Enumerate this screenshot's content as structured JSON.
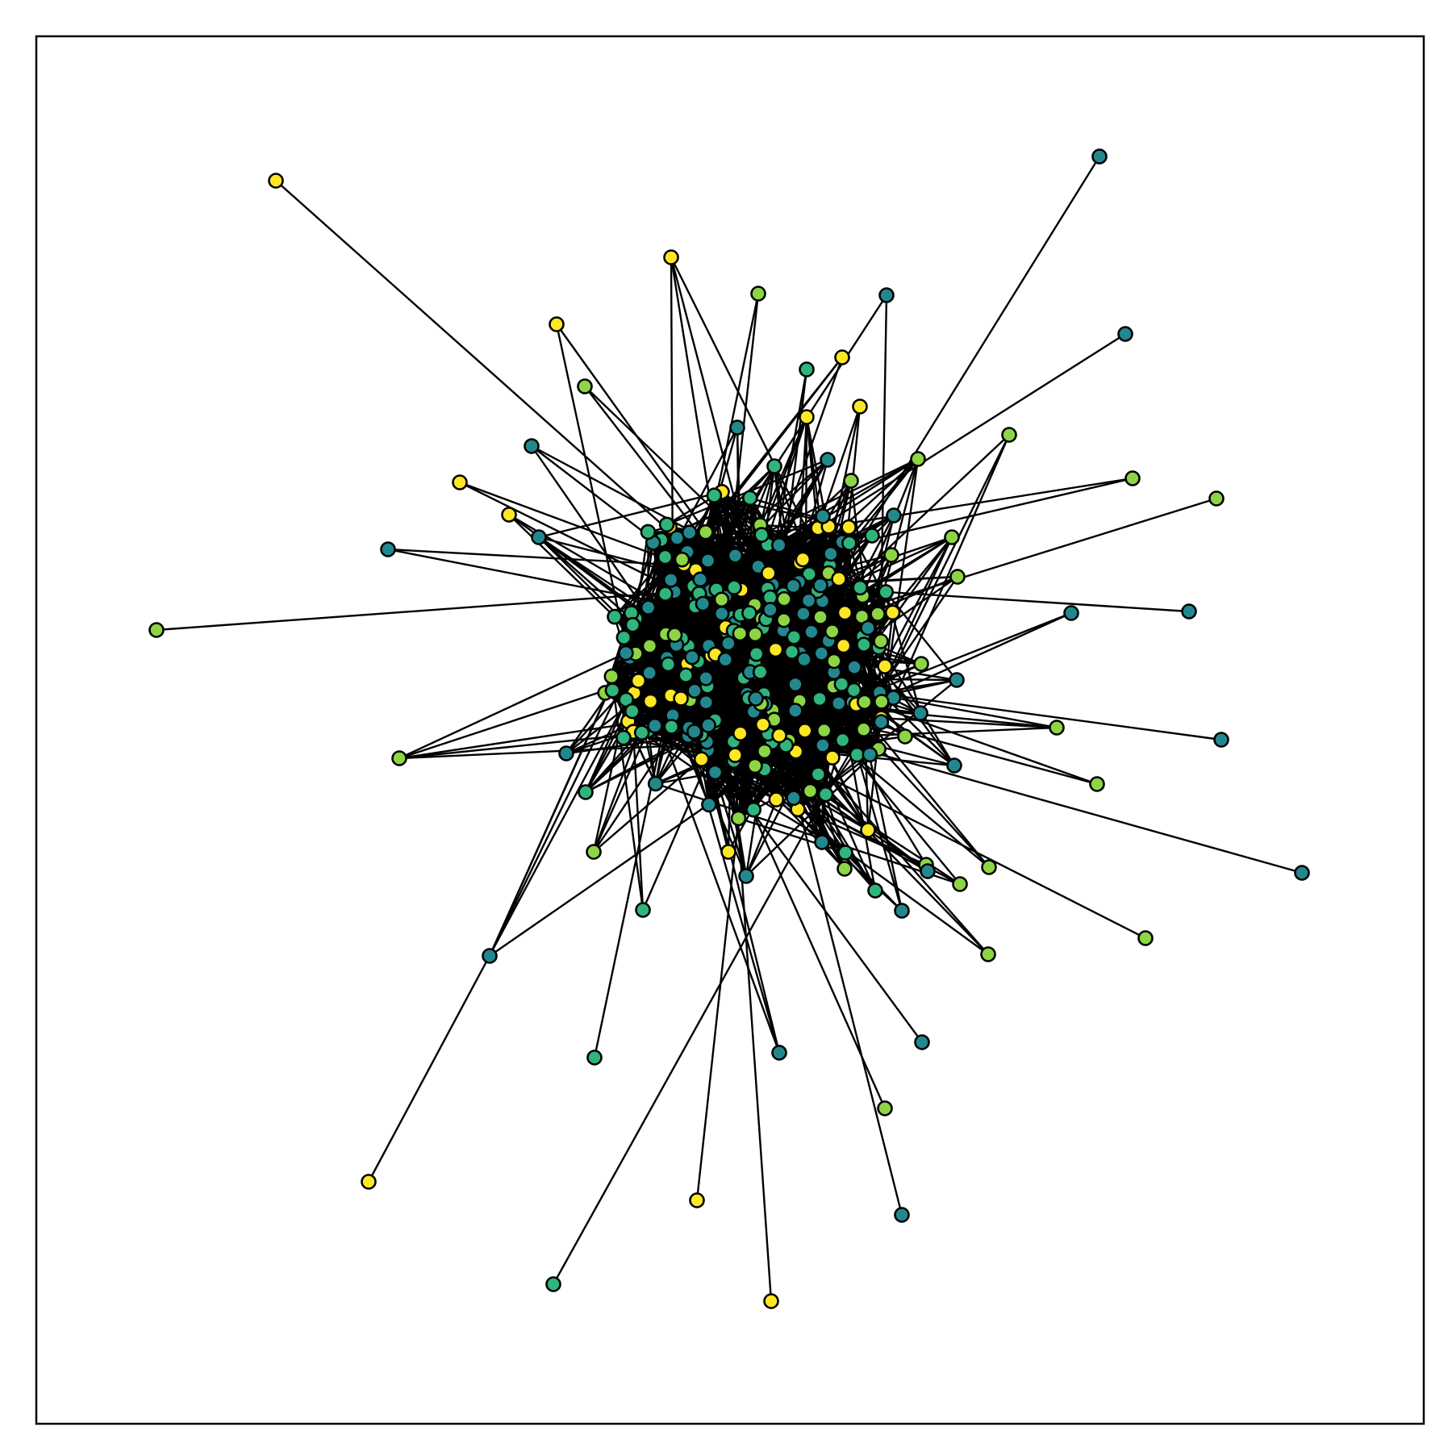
{
  "chart_data": {
    "type": "network",
    "title": "",
    "axes": {
      "ticks_visible": false,
      "grid": false
    },
    "palette": {
      "teal": "#22888e",
      "green": "#2fb47c",
      "lime": "#8dd544",
      "yellow": "#fde725",
      "edge": "#000000",
      "node_outline": "#000000"
    },
    "peripheral_nodes": [
      {
        "id": "p1",
        "color": "yellow"
      },
      {
        "id": "p2",
        "color": "yellow"
      },
      {
        "id": "p3",
        "color": "lime"
      },
      {
        "id": "p4",
        "color": "teal"
      },
      {
        "id": "p5",
        "color": "teal"
      },
      {
        "id": "p6",
        "color": "yellow"
      },
      {
        "id": "p7",
        "color": "lime"
      },
      {
        "id": "p8",
        "color": "teal"
      },
      {
        "id": "p9",
        "color": "green"
      },
      {
        "id": "p10",
        "color": "yellow"
      },
      {
        "id": "p11",
        "color": "yellow"
      },
      {
        "id": "p12",
        "color": "teal"
      },
      {
        "id": "p13",
        "color": "lime"
      },
      {
        "id": "p14",
        "color": "yellow"
      },
      {
        "id": "p15",
        "color": "yellow"
      },
      {
        "id": "p16",
        "color": "teal"
      },
      {
        "id": "p17",
        "color": "lime"
      },
      {
        "id": "p18",
        "color": "lime"
      },
      {
        "id": "p19",
        "color": "teal"
      },
      {
        "id": "p20",
        "color": "lime"
      },
      {
        "id": "p21",
        "color": "teal"
      },
      {
        "id": "p22",
        "color": "lime"
      },
      {
        "id": "p23",
        "color": "lime"
      },
      {
        "id": "p24",
        "color": "teal"
      },
      {
        "id": "p25",
        "color": "lime"
      },
      {
        "id": "p26",
        "color": "teal"
      },
      {
        "id": "p27",
        "color": "lime"
      },
      {
        "id": "p28",
        "color": "teal"
      },
      {
        "id": "p29",
        "color": "lime"
      },
      {
        "id": "p30",
        "color": "lime"
      },
      {
        "id": "p31",
        "color": "lime"
      },
      {
        "id": "p32",
        "color": "teal"
      },
      {
        "id": "p33",
        "color": "lime"
      },
      {
        "id": "p34",
        "color": "teal"
      },
      {
        "id": "p35",
        "color": "lime"
      },
      {
        "id": "p36",
        "color": "teal"
      },
      {
        "id": "p37",
        "color": "teal"
      },
      {
        "id": "p38",
        "color": "lime"
      },
      {
        "id": "p39",
        "color": "green"
      },
      {
        "id": "p40",
        "color": "yellow"
      },
      {
        "id": "p41",
        "color": "green"
      },
      {
        "id": "p42",
        "color": "yellow"
      },
      {
        "id": "p43",
        "color": "green"
      },
      {
        "id": "p44",
        "color": "teal"
      },
      {
        "id": "p45",
        "color": "teal"
      },
      {
        "id": "p46",
        "color": "yellow"
      },
      {
        "id": "p47",
        "color": "green"
      },
      {
        "id": "p48",
        "color": "lime"
      },
      {
        "id": "p49",
        "color": "teal"
      },
      {
        "id": "p50",
        "color": "teal"
      },
      {
        "id": "p51",
        "color": "lime"
      },
      {
        "id": "p52",
        "color": "teal"
      },
      {
        "id": "p53",
        "color": "lime"
      },
      {
        "id": "p54",
        "color": "lime"
      },
      {
        "id": "p55",
        "color": "teal"
      },
      {
        "id": "p56",
        "color": "lime"
      },
      {
        "id": "p57",
        "color": "lime"
      },
      {
        "id": "p58",
        "color": "teal"
      },
      {
        "id": "p59",
        "color": "lime"
      },
      {
        "id": "p60",
        "color": "teal"
      },
      {
        "id": "p61",
        "color": "lime"
      },
      {
        "id": "p62",
        "color": "teal"
      },
      {
        "id": "p63",
        "color": "yellow"
      },
      {
        "id": "p64",
        "color": "green"
      },
      {
        "id": "p65",
        "color": "green"
      },
      {
        "id": "p66",
        "color": "green"
      },
      {
        "id": "p67",
        "color": "teal"
      },
      {
        "id": "p68",
        "color": "yellow"
      },
      {
        "id": "p69",
        "color": "green"
      },
      {
        "id": "p70",
        "color": "yellow"
      },
      {
        "id": "p71",
        "color": "teal"
      },
      {
        "id": "p72",
        "color": "lime"
      },
      {
        "id": "p73",
        "color": "yellow"
      },
      {
        "id": "p74",
        "color": "teal"
      }
    ],
    "core_node_count": 240,
    "core_color_weights": {
      "teal": 0.32,
      "green": 0.38,
      "lime": 0.16,
      "yellow": 0.14
    }
  }
}
